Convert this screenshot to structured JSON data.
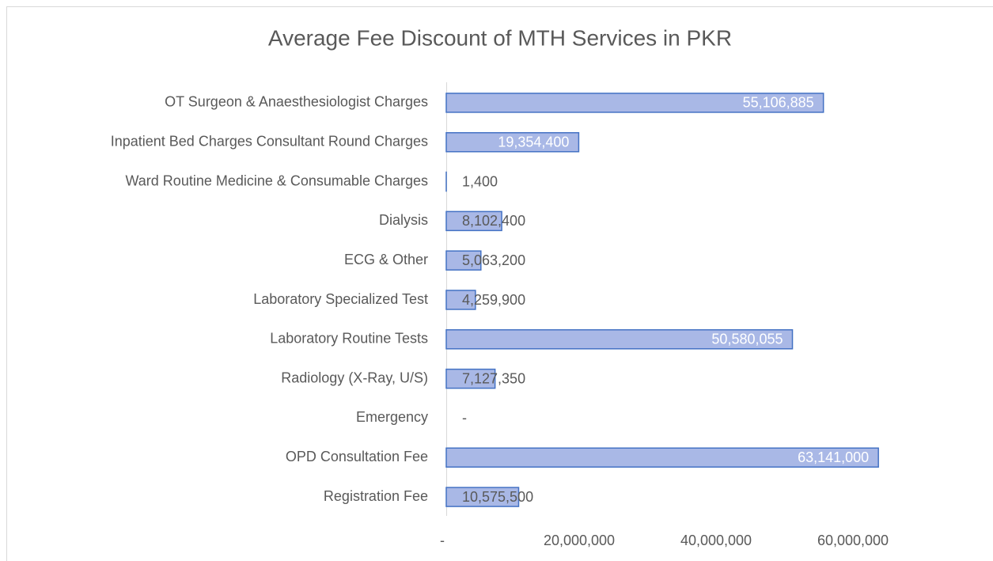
{
  "chart_data": {
    "type": "bar",
    "orientation": "horizontal",
    "title": "Average Fee Discount of MTH Services in PKR",
    "categories": [
      "OT Surgeon & Anaesthesiologist Charges",
      "Inpatient Bed Charges Consultant Round Charges",
      "Ward Routine Medicine & Consumable Charges",
      "Dialysis",
      "ECG & Other",
      "Laboratory Specialized Test",
      "Laboratory Routine Tests",
      "Radiology (X-Ray, U/S)",
      "Emergency",
      "OPD Consultation Fee",
      "Registration Fee"
    ],
    "values": [
      55106885,
      19354400,
      1400,
      8102400,
      5063200,
      4259900,
      50580055,
      7127350,
      0,
      63141000,
      10575500
    ],
    "value_labels": [
      "55,106,885",
      "19,354,400",
      "1,400",
      "8,102,400",
      "5,063,200",
      "4,259,900",
      "50,580,055",
      "7,127,350",
      "-",
      "63,141,000",
      "10,575,500"
    ],
    "color": "#a9b8e6",
    "xlim": [
      0,
      70000000
    ],
    "xticks": [
      {
        "value": 0,
        "label": "-"
      },
      {
        "value": 20000000,
        "label": "20,000,000"
      },
      {
        "value": 40000000,
        "label": "40,000,000"
      },
      {
        "value": 60000000,
        "label": "60,000,000"
      }
    ]
  }
}
